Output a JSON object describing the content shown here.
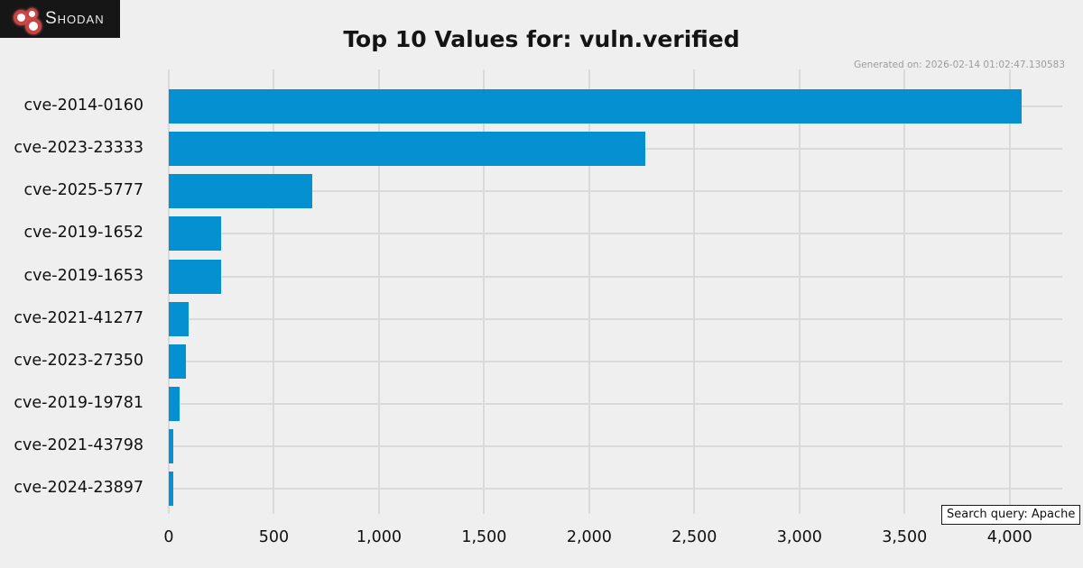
{
  "header": {
    "logo_text": "Shodan",
    "title": "Top 10 Values for: vuln.verified",
    "generated_on": "Generated on: 2026-02-14 01:02:47.130583"
  },
  "chart_data": {
    "type": "bar",
    "orientation": "horizontal",
    "title": "Top 10 Values for: vuln.verified",
    "categories": [
      "cve-2014-0160",
      "cve-2023-23333",
      "cve-2025-5777",
      "cve-2019-1652",
      "cve-2019-1653",
      "cve-2021-41277",
      "cve-2023-27350",
      "cve-2019-19781",
      "cve-2021-43798",
      "cve-2024-23897"
    ],
    "values": [
      4055,
      2265,
      682,
      249,
      250,
      96,
      80,
      52,
      22,
      20
    ],
    "xlabel": "",
    "ylabel": "",
    "xlim": [
      0,
      4250
    ],
    "xticks": [
      0,
      500,
      1000,
      1500,
      2000,
      2500,
      3000,
      3500,
      4000
    ],
    "xtick_labels": [
      "0",
      "500",
      "1,000",
      "1,500",
      "2,000",
      "2,500",
      "3,000",
      "3,500",
      "4,000"
    ],
    "grid": true,
    "legend": false,
    "bar_color": "#0590d2"
  },
  "footer": {
    "search_query_label": "Search query: Apache"
  },
  "colors": {
    "background": "#efefef",
    "bar": "#0590d2",
    "grid": "#dadada",
    "logo_background": "#161616",
    "logo_red": "#c84444"
  }
}
